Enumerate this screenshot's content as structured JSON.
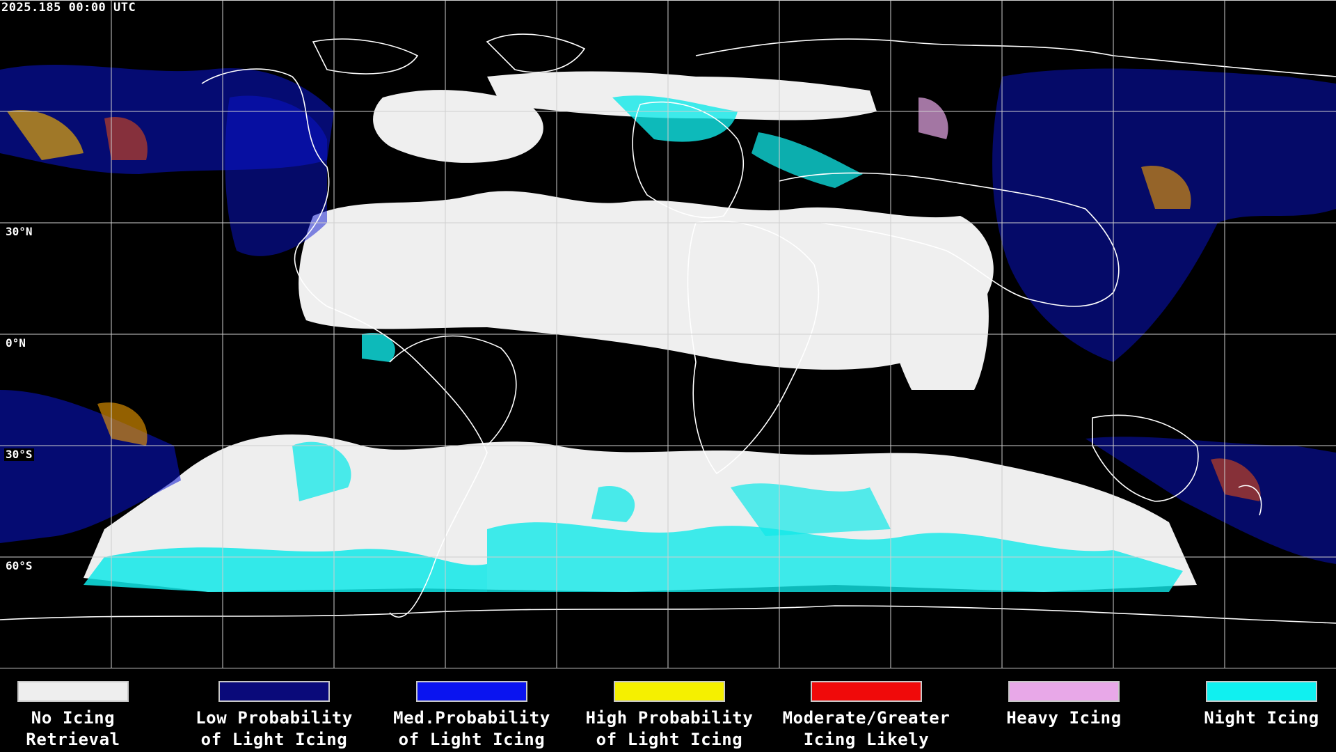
{
  "timestamp": "2025.185 00:00 UTC",
  "lat_labels": {
    "lat30n": "30°N",
    "lat0": "0°N",
    "lat30s": "30°S",
    "lat60s": "60°S"
  },
  "legend": [
    {
      "line1": "No Icing",
      "line2": "Retrieval",
      "color": "#eeeeee"
    },
    {
      "line1": "Low Probability",
      "line2": "of Light Icing",
      "color": "#0a0a7a"
    },
    {
      "line1": "Med.Probability",
      "line2": "of Light Icing",
      "color": "#0a14f0"
    },
    {
      "line1": "High Probability",
      "line2": "of Light Icing",
      "color": "#f5f000"
    },
    {
      "line1": "Moderate/Greater",
      "line2": "Icing Likely",
      "color": "#f00a0a"
    },
    {
      "line1": "Heavy Icing",
      "line2": "",
      "color": "#e8a8e8"
    },
    {
      "line1": "Night Icing",
      "line2": "",
      "color": "#10f0f0"
    }
  ]
}
